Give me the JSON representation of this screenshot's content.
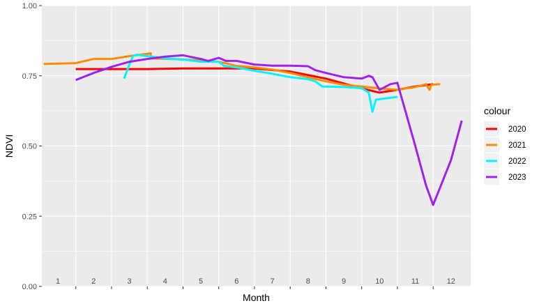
{
  "chart_data": {
    "type": "line",
    "title": "",
    "xlabel": "Month",
    "ylabel": "NDVI",
    "xlim": [
      0.55,
      12.55
    ],
    "ylim": [
      0,
      1
    ],
    "x_tick_labels": [
      {
        "x": 1,
        "label": "1"
      },
      {
        "x": 2,
        "label": "2"
      },
      {
        "x": 3,
        "label": "3"
      },
      {
        "x": 4,
        "label": "4"
      },
      {
        "x": 5,
        "label": "5"
      },
      {
        "x": 6,
        "label": "6"
      },
      {
        "x": 7,
        "label": "7"
      },
      {
        "x": 8,
        "label": "8"
      },
      {
        "x": 9,
        "label": "9"
      },
      {
        "x": 10,
        "label": "10"
      },
      {
        "x": 11,
        "label": "11"
      },
      {
        "x": 12,
        "label": "12"
      }
    ],
    "y_ticks": [
      {
        "value": 0,
        "label": "0.00"
      },
      {
        "value": 0.25,
        "label": "0.25"
      },
      {
        "value": 0.5,
        "label": "0.50"
      },
      {
        "value": 0.75,
        "label": "0.75"
      },
      {
        "value": 1,
        "label": "1.00"
      }
    ],
    "grid": true,
    "legend": {
      "title": "colour",
      "position": "right"
    },
    "series": [
      {
        "name": "2020",
        "color": "#ff0000",
        "points": [
          [
            1.5,
            0.774
          ],
          [
            2.5,
            0.774
          ],
          [
            3.5,
            0.774
          ],
          [
            4.5,
            0.776
          ],
          [
            5.5,
            0.776
          ],
          [
            6.5,
            0.776
          ],
          [
            7.5,
            0.765
          ],
          [
            8.5,
            0.74
          ],
          [
            9.5,
            0.705
          ],
          [
            10.0,
            0.69
          ],
          [
            10.5,
            0.7
          ],
          [
            11.0,
            0.712
          ],
          [
            11.5,
            0.72
          ]
        ]
      },
      {
        "name": "2021",
        "color": "#ff8c00",
        "points": [
          [
            0.6,
            0.792
          ],
          [
            1.5,
            0.795
          ],
          [
            2.0,
            0.81
          ],
          [
            2.5,
            0.81
          ],
          [
            3.0,
            0.82
          ],
          [
            3.6,
            0.83
          ],
          [
            3.6,
            0.812
          ],
          [
            4.5,
            0.808
          ],
          [
            5.0,
            0.805
          ],
          [
            5.5,
            0.8
          ],
          [
            6.0,
            0.785
          ],
          [
            6.5,
            0.78
          ],
          [
            7.0,
            0.772
          ],
          [
            7.5,
            0.76
          ],
          [
            8.0,
            0.745
          ],
          [
            8.5,
            0.73
          ],
          [
            9.0,
            0.718
          ],
          [
            9.5,
            0.712
          ],
          [
            10.0,
            0.705
          ],
          [
            10.5,
            0.7
          ],
          [
            11.0,
            0.71
          ],
          [
            11.3,
            0.72
          ],
          [
            11.4,
            0.7
          ],
          [
            11.45,
            0.718
          ],
          [
            11.7,
            0.72
          ]
        ]
      },
      {
        "name": "2022",
        "color": "#00f5ff",
        "points": [
          [
            2.85,
            0.74
          ],
          [
            3.0,
            0.79
          ],
          [
            3.1,
            0.82
          ],
          [
            3.2,
            0.825
          ],
          [
            3.5,
            0.82
          ],
          [
            4.0,
            0.812
          ],
          [
            4.5,
            0.808
          ],
          [
            5.0,
            0.8
          ],
          [
            5.5,
            0.8
          ],
          [
            5.65,
            0.785
          ],
          [
            6.0,
            0.78
          ],
          [
            6.5,
            0.768
          ],
          [
            7.0,
            0.757
          ],
          [
            7.5,
            0.745
          ],
          [
            8.0,
            0.738
          ],
          [
            8.2,
            0.73
          ],
          [
            8.4,
            0.712
          ],
          [
            9.0,
            0.71
          ],
          [
            9.5,
            0.706
          ],
          [
            9.7,
            0.69
          ],
          [
            9.8,
            0.622
          ],
          [
            9.9,
            0.665
          ],
          [
            10.2,
            0.67
          ],
          [
            10.5,
            0.675
          ]
        ]
      },
      {
        "name": "2023",
        "color": "#a020f0",
        "points": [
          [
            1.5,
            0.735
          ],
          [
            2.0,
            0.76
          ],
          [
            2.5,
            0.782
          ],
          [
            3.0,
            0.8
          ],
          [
            3.5,
            0.81
          ],
          [
            4.0,
            0.818
          ],
          [
            4.5,
            0.823
          ],
          [
            5.0,
            0.81
          ],
          [
            5.2,
            0.803
          ],
          [
            5.4,
            0.81
          ],
          [
            5.5,
            0.814
          ],
          [
            5.7,
            0.803
          ],
          [
            6.0,
            0.803
          ],
          [
            6.5,
            0.79
          ],
          [
            7.0,
            0.786
          ],
          [
            7.5,
            0.786
          ],
          [
            8.0,
            0.784
          ],
          [
            8.2,
            0.77
          ],
          [
            8.5,
            0.76
          ],
          [
            9.0,
            0.745
          ],
          [
            9.5,
            0.74
          ],
          [
            9.7,
            0.75
          ],
          [
            9.8,
            0.745
          ],
          [
            10.0,
            0.7
          ],
          [
            10.3,
            0.72
          ],
          [
            10.5,
            0.725
          ],
          [
            11.0,
            0.5
          ],
          [
            11.3,
            0.36
          ],
          [
            11.5,
            0.29
          ],
          [
            12.0,
            0.45
          ],
          [
            12.3,
            0.59
          ]
        ]
      }
    ]
  }
}
